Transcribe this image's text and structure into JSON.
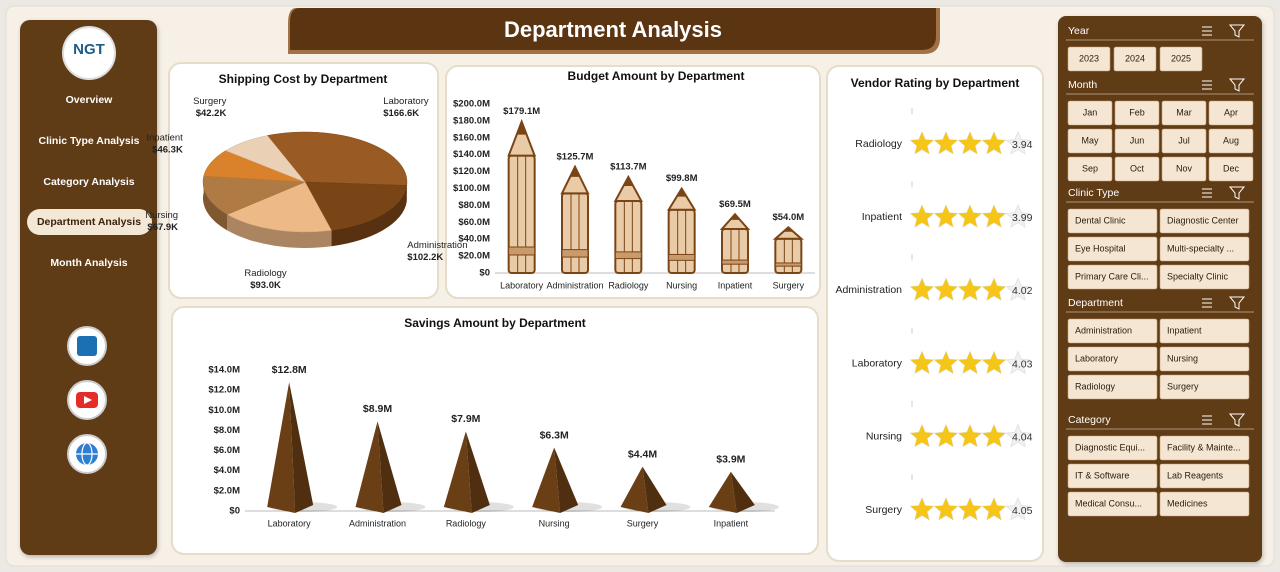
{
  "title": "Department Analysis",
  "nav": {
    "logo": "NGT",
    "items": [
      "Overview",
      "Clinic Type Analysis",
      "Category Analysis",
      "Department Analysis",
      "Month Analysis"
    ],
    "active": 3
  },
  "slicers": [
    {
      "title": "Year",
      "items": [
        "2023",
        "2024",
        "2025"
      ]
    },
    {
      "title": "Month",
      "items": [
        "Jan",
        "Feb",
        "Mar",
        "Apr",
        "May",
        "Jun",
        "Jul",
        "Aug",
        "Sep",
        "Oct",
        "Nov",
        "Dec"
      ]
    },
    {
      "title": "Clinic Type",
      "items": [
        "Dental Clinic",
        "Diagnostic Center",
        "Eye Hospital",
        "Multi-specialty ...",
        "Primary Care Cli...",
        "Specialty Clinic"
      ]
    },
    {
      "title": "Department",
      "items": [
        "Administration",
        "Inpatient",
        "Laboratory",
        "Nursing",
        "Radiology",
        "Surgery"
      ]
    },
    {
      "title": "Category",
      "items": [
        "Diagnostic Equi...",
        "Facility & Mainte...",
        "IT & Software",
        "Lab Reagents",
        "Medical Consu...",
        "Medicines"
      ]
    }
  ],
  "chart_data": [
    {
      "type": "pie",
      "title": "Shipping Cost by Department",
      "categories": [
        "Laboratory",
        "Administration",
        "Radiology",
        "Nursing",
        "Inpatient",
        "Surgery"
      ],
      "values": [
        166.6,
        102.2,
        93.0,
        67.9,
        46.3,
        42.2
      ],
      "value_labels": [
        "$166.6K",
        "$102.2K",
        "$93.0K",
        "$67.9K",
        "$46.3K",
        "$42.2K"
      ],
      "colors": [
        "#9a5a23",
        "#7a4516",
        "#edb987",
        "#b07a45",
        "#d9822b",
        "#ead0b4"
      ]
    },
    {
      "type": "bar",
      "shape": "pencil",
      "title": "Budget Amount by Department",
      "categories": [
        "Laboratory",
        "Administration",
        "Radiology",
        "Nursing",
        "Inpatient",
        "Surgery"
      ],
      "values": [
        179.1,
        125.7,
        113.7,
        99.8,
        69.5,
        54.0
      ],
      "value_labels": [
        "$179.1M",
        "$125.7M",
        "$113.7M",
        "$99.8M",
        "$69.5M",
        "$54.0M"
      ],
      "color": "#e9cba8",
      "ylim": [
        0,
        200
      ],
      "yticks": [
        {
          "value": 0,
          "label": "$0"
        },
        {
          "value": 20,
          "label": "$20.0M"
        },
        {
          "value": 40,
          "label": "$40.0M"
        },
        {
          "value": 60,
          "label": "$60.0M"
        },
        {
          "value": 80,
          "label": "$80.0M"
        },
        {
          "value": 100,
          "label": "$100.0M"
        },
        {
          "value": 120,
          "label": "$120.0M"
        },
        {
          "value": 140,
          "label": "$140.0M"
        },
        {
          "value": 160,
          "label": "$160.0M"
        },
        {
          "value": 180,
          "label": "$180.0M"
        },
        {
          "value": 200,
          "label": "$200.0M"
        }
      ]
    },
    {
      "type": "bar",
      "shape": "pyramid",
      "title": "Savings Amount by Department",
      "categories": [
        "Laboratory",
        "Administration",
        "Radiology",
        "Nursing",
        "Surgery",
        "Inpatient"
      ],
      "values": [
        12.8,
        8.9,
        7.9,
        6.3,
        4.4,
        3.9
      ],
      "value_labels": [
        "$12.8M",
        "$8.9M",
        "$7.9M",
        "$6.3M",
        "$4.4M",
        "$3.9M"
      ],
      "color": "#6b3f15",
      "ylim": [
        0,
        14
      ],
      "yticks": [
        {
          "value": 0,
          "label": "$0"
        },
        {
          "value": 2,
          "label": "$2.0M"
        },
        {
          "value": 4,
          "label": "$4.0M"
        },
        {
          "value": 6,
          "label": "$6.0M"
        },
        {
          "value": 8,
          "label": "$8.0M"
        },
        {
          "value": 10,
          "label": "$10.0M"
        },
        {
          "value": 12,
          "label": "$12.0M"
        },
        {
          "value": 14,
          "label": "$14.0M"
        }
      ]
    },
    {
      "type": "rating",
      "title": "Vendor Rating by Department",
      "categories": [
        "Radiology",
        "Inpatient",
        "Administration",
        "Laboratory",
        "Nursing",
        "Surgery"
      ],
      "values": [
        3.94,
        3.99,
        4.02,
        4.03,
        4.04,
        4.05
      ],
      "max": 5,
      "color": "#f5c518"
    }
  ]
}
